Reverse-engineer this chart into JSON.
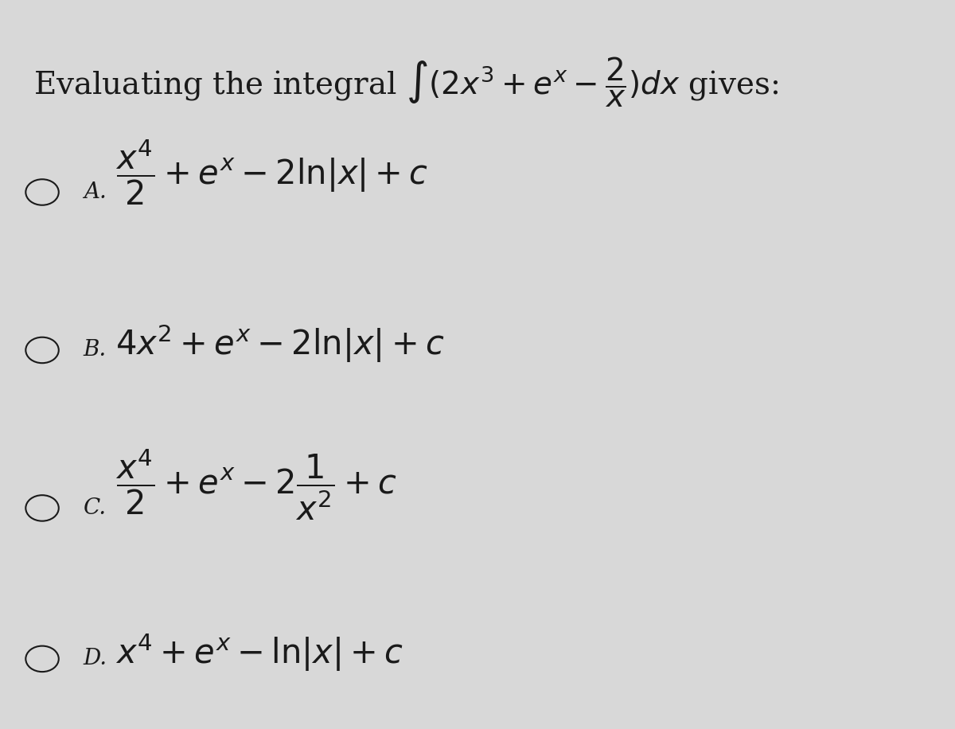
{
  "background_color": "#d8d8d8",
  "text_color": "#1a1a1a",
  "title_text": "Evaluating the integral $\\int(2x^3+e^x-\\dfrac{2}{x})dx$ gives:",
  "options": [
    {
      "label": "A.",
      "formula": "$\\dfrac{x^4}{2}+e^x-2\\ln|x|+c$"
    },
    {
      "label": "B.",
      "formula": "$4x^2+e^x-2\\ln|x|+c$"
    },
    {
      "label": "C.",
      "formula": "$\\dfrac{x^4}{2}+e^x-2\\dfrac{1}{x^2}+c$"
    },
    {
      "label": "D.",
      "formula": "$x^4+e^x-\\ln|x|+c$"
    }
  ],
  "fig_width": 12.0,
  "fig_height": 9.16,
  "dpi": 100
}
